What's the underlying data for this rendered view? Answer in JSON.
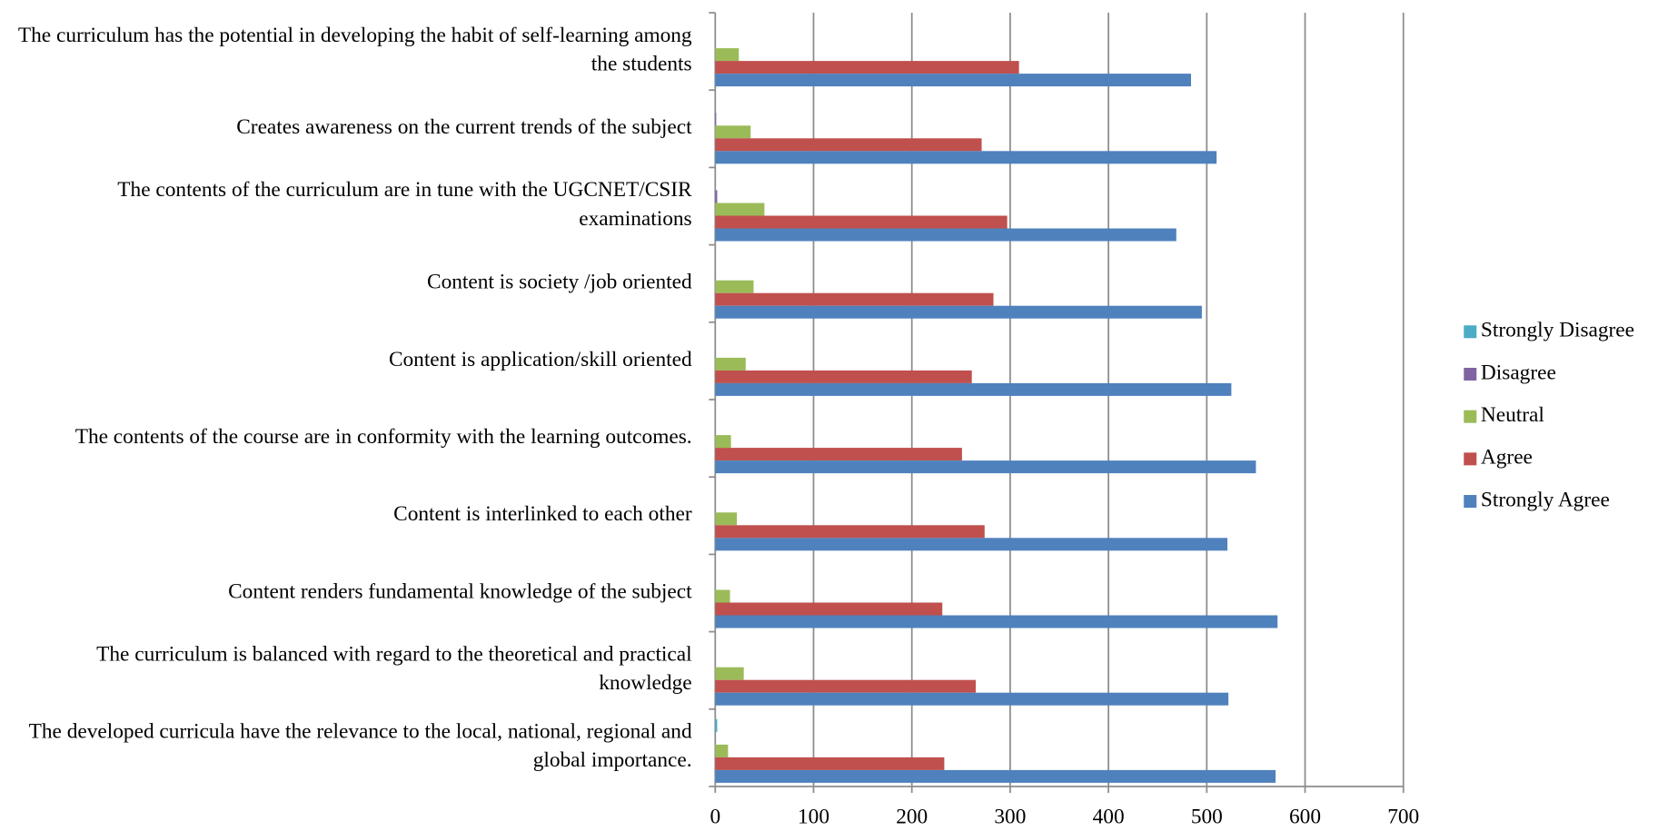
{
  "chart_data": {
    "type": "bar",
    "orientation": "horizontal",
    "categories": [
      "The curriculum has the potential in developing the habit of self-learning among the students",
      "Creates awareness on the current trends of the subject",
      "The contents of the curriculum are in tune with the UGCNET/CSIR examinations",
      "Content is society /job oriented",
      "Content is application/skill oriented",
      "The contents of the course are in conformity with the learning outcomes.",
      "Content is interlinked to each other",
      "Content renders fundamental knowledge of the subject",
      "The curriculum is balanced with regard to the theoretical and practical knowledge",
      "The developed curricula have the relevance to the local, national, regional and global importance."
    ],
    "series": [
      {
        "name": "Strongly Disagree",
        "color": "#4bacc6",
        "values": [
          0,
          0,
          0,
          0,
          0,
          0,
          0,
          0,
          0,
          2
        ]
      },
      {
        "name": "Disagree",
        "color": "#8064a2",
        "values": [
          0,
          1,
          2,
          0,
          0,
          0,
          0,
          0,
          0,
          0
        ]
      },
      {
        "name": "Neutral",
        "color": "#9bbb59",
        "values": [
          24,
          36,
          50,
          39,
          31,
          16,
          22,
          15,
          29,
          13
        ]
      },
      {
        "name": "Agree",
        "color": "#c0504d",
        "values": [
          309,
          271,
          297,
          283,
          261,
          251,
          274,
          231,
          265,
          233
        ]
      },
      {
        "name": "Strongly Agree",
        "color": "#4f81bd",
        "values": [
          484,
          510,
          469,
          495,
          525,
          550,
          521,
          572,
          522,
          570
        ]
      }
    ],
    "xlim": [
      0,
      700
    ],
    "xticks": [
      0,
      100,
      200,
      300,
      400,
      500,
      600,
      700
    ],
    "grid": true,
    "legend": "right"
  }
}
